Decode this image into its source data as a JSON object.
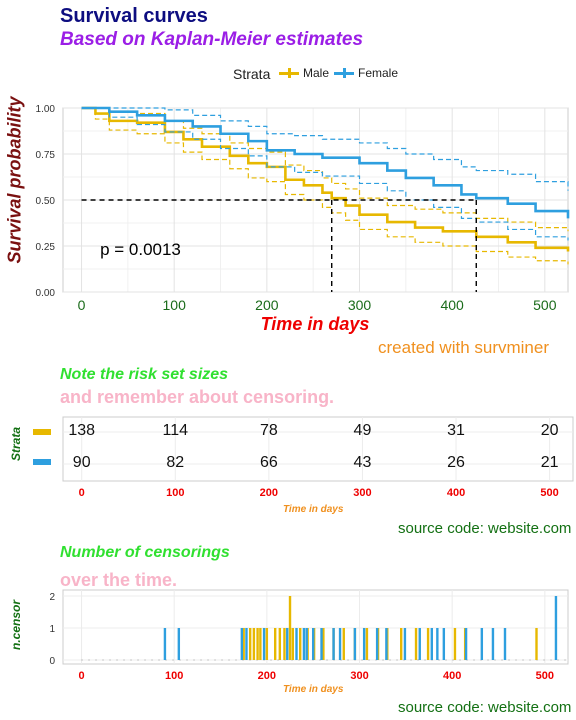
{
  "title": "Survival curves",
  "subtitle": "Based on Kaplan-Meier estimates",
  "legend": {
    "title": "Strata",
    "items": [
      {
        "label": "Male",
        "color": "#E7B800"
      },
      {
        "label": "Female",
        "color": "#2E9FDF"
      }
    ]
  },
  "caption": "created with survminer",
  "chart_data": [
    {
      "type": "line",
      "title": "Survival curves",
      "subtitle": "Based on Kaplan-Meier estimates",
      "xlabel": "Time in days",
      "ylabel": "Survival probability",
      "xlim": [
        -20,
        525
      ],
      "ylim": [
        0,
        1
      ],
      "xticks": [
        0,
        100,
        200,
        300,
        400,
        500
      ],
      "yticks": [
        "0.00",
        "0.25",
        "0.50",
        "0.75",
        "1.00"
      ],
      "grid": true,
      "legend_position": "top",
      "annotation": "p = 0.0013",
      "median_survival": [
        {
          "series": "Male",
          "time": 270
        },
        {
          "series": "Female",
          "time": 426
        }
      ],
      "series": [
        {
          "name": "Male",
          "color": "#E7B800",
          "x": [
            0,
            15,
            30,
            60,
            90,
            110,
            130,
            160,
            180,
            200,
            220,
            240,
            260,
            270,
            285,
            300,
            330,
            360,
            390,
            426,
            460,
            490,
            525
          ],
          "y": [
            1.0,
            0.97,
            0.93,
            0.92,
            0.87,
            0.83,
            0.79,
            0.74,
            0.7,
            0.68,
            0.61,
            0.58,
            0.54,
            0.51,
            0.47,
            0.42,
            0.38,
            0.35,
            0.33,
            0.3,
            0.27,
            0.24,
            0.22
          ],
          "ci_upper": [
            1.0,
            1.0,
            0.98,
            0.97,
            0.93,
            0.89,
            0.86,
            0.81,
            0.78,
            0.76,
            0.69,
            0.66,
            0.62,
            0.59,
            0.56,
            0.51,
            0.47,
            0.45,
            0.43,
            0.4,
            0.38,
            0.35,
            0.33
          ],
          "ci_lower": [
            1.0,
            0.94,
            0.88,
            0.86,
            0.81,
            0.76,
            0.72,
            0.67,
            0.62,
            0.6,
            0.53,
            0.5,
            0.46,
            0.43,
            0.39,
            0.34,
            0.3,
            0.27,
            0.25,
            0.22,
            0.19,
            0.17,
            0.15
          ]
        },
        {
          "name": "Female",
          "color": "#2E9FDF",
          "x": [
            0,
            30,
            60,
            90,
            120,
            150,
            180,
            200,
            230,
            260,
            300,
            330,
            350,
            380,
            410,
            426,
            460,
            490,
            525
          ],
          "y": [
            1.0,
            0.98,
            0.96,
            0.93,
            0.9,
            0.86,
            0.82,
            0.77,
            0.75,
            0.73,
            0.7,
            0.66,
            0.62,
            0.58,
            0.53,
            0.51,
            0.48,
            0.44,
            0.4
          ],
          "ci_upper": [
            1.0,
            1.0,
            1.0,
            0.99,
            0.96,
            0.93,
            0.9,
            0.86,
            0.85,
            0.83,
            0.81,
            0.78,
            0.75,
            0.72,
            0.68,
            0.66,
            0.64,
            0.6,
            0.55
          ],
          "ci_lower": [
            1.0,
            0.95,
            0.91,
            0.87,
            0.83,
            0.78,
            0.74,
            0.68,
            0.65,
            0.63,
            0.59,
            0.55,
            0.5,
            0.46,
            0.4,
            0.38,
            0.34,
            0.3,
            0.28
          ]
        }
      ]
    },
    {
      "type": "table",
      "title": "Note the risk set sizes",
      "subtitle": "and remember about censoring.",
      "xlabel": "Time in days",
      "ylabel": "Strata",
      "xticks": [
        0,
        100,
        200,
        300,
        400,
        500
      ],
      "series": [
        {
          "name": "Male",
          "color": "#E7B800",
          "values": [
            138,
            114,
            78,
            49,
            31,
            20
          ]
        },
        {
          "name": "Female",
          "color": "#2E9FDF",
          "values": [
            90,
            82,
            66,
            43,
            26,
            21
          ]
        }
      ]
    },
    {
      "type": "bar",
      "title": "Number of censorings",
      "subtitle": "over the time.",
      "xlabel": "Time in days",
      "ylabel": "n.censor",
      "xticks": [
        0,
        100,
        200,
        300,
        400,
        500
      ],
      "yticks": [
        0,
        1,
        2
      ],
      "ylim": [
        0,
        2
      ],
      "series": [
        {
          "name": "Male",
          "color": "#E7B800",
          "x": [
            175,
            182,
            186,
            190,
            193,
            200,
            209,
            214,
            219,
            225,
            228,
            236,
            244,
            251,
            261,
            272,
            283,
            295,
            308,
            320,
            330,
            345,
            361,
            374,
            403,
            414,
            491
          ],
          "y": [
            1,
            1,
            1,
            1,
            1,
            1,
            1,
            1,
            1,
            2,
            1,
            1,
            1,
            1,
            1,
            1,
            1,
            1,
            1,
            1,
            1,
            1,
            1,
            1,
            1,
            1,
            1
          ]
        },
        {
          "name": "Female",
          "color": "#2E9FDF",
          "x": [
            90,
            105,
            173,
            178,
            197,
            222,
            232,
            240,
            243,
            250,
            259,
            272,
            279,
            295,
            305,
            319,
            329,
            349,
            365,
            378,
            384,
            391,
            415,
            432,
            444,
            457,
            512
          ],
          "y": [
            1,
            1,
            1,
            1,
            1,
            1,
            1,
            1,
            1,
            1,
            1,
            1,
            1,
            1,
            1,
            1,
            1,
            1,
            1,
            1,
            1,
            1,
            1,
            1,
            1,
            1,
            2
          ]
        }
      ]
    }
  ],
  "risk_table": {
    "title": "Note the risk set sizes",
    "subtitle": "and remember about censoring.",
    "strata_label": "Strata",
    "xlabel": "Time in days",
    "source": "source code: website.com"
  },
  "censor_plot": {
    "title": "Number of censorings",
    "subtitle": "over the time.",
    "ylabel": "n.censor",
    "xlabel": "Time in days",
    "source": "source code: website.com"
  }
}
